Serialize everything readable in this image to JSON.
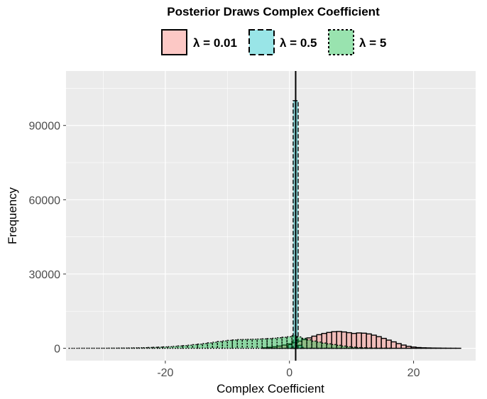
{
  "chart_data": {
    "type": "histogram",
    "title": "Posterior Draws Complex Coefficient",
    "xlabel": "Complex Coefficient",
    "ylabel": "Frequency",
    "xlim": [
      -36,
      30
    ],
    "ylim": [
      -5000,
      112000
    ],
    "x_ticks": [
      -20,
      0,
      20
    ],
    "x_tick_labels": [
      "-20",
      "0",
      "20"
    ],
    "y_ticks": [
      0,
      30000,
      60000,
      90000
    ],
    "y_tick_labels": [
      "0",
      "30000",
      "60000",
      "90000"
    ],
    "vline_x": 1,
    "grid": true,
    "legend_position": "top",
    "series": [
      {
        "name": "λ = 0.01",
        "fill": "#f8766d",
        "fill_alpha": 0.4,
        "border": "solid",
        "bin_width": 0.8,
        "bins": [
          {
            "x": -4,
            "y": 200
          },
          {
            "x": -3.2,
            "y": 400
          },
          {
            "x": -2.4,
            "y": 600
          },
          {
            "x": -1.6,
            "y": 900
          },
          {
            "x": -0.8,
            "y": 1300
          },
          {
            "x": 0,
            "y": 1800
          },
          {
            "x": 0.8,
            "y": 2300
          },
          {
            "x": 1.6,
            "y": 2900
          },
          {
            "x": 2.4,
            "y": 3500
          },
          {
            "x": 3.2,
            "y": 4200
          },
          {
            "x": 4,
            "y": 4900
          },
          {
            "x": 4.8,
            "y": 5500
          },
          {
            "x": 5.6,
            "y": 6000
          },
          {
            "x": 6.4,
            "y": 6400
          },
          {
            "x": 7.2,
            "y": 6700
          },
          {
            "x": 8,
            "y": 6800
          },
          {
            "x": 8.8,
            "y": 6600
          },
          {
            "x": 9.6,
            "y": 6300
          },
          {
            "x": 10.4,
            "y": 6000
          },
          {
            "x": 11.2,
            "y": 6200
          },
          {
            "x": 12,
            "y": 6100
          },
          {
            "x": 12.8,
            "y": 5800
          },
          {
            "x": 13.6,
            "y": 5300
          },
          {
            "x": 14.4,
            "y": 4700
          },
          {
            "x": 15.2,
            "y": 4000
          },
          {
            "x": 16,
            "y": 3300
          },
          {
            "x": 16.8,
            "y": 2600
          },
          {
            "x": 17.6,
            "y": 1900
          },
          {
            "x": 18.4,
            "y": 1300
          },
          {
            "x": 19.2,
            "y": 800
          },
          {
            "x": 20,
            "y": 500
          },
          {
            "x": 20.8,
            "y": 300
          },
          {
            "x": 21.6,
            "y": 200
          },
          {
            "x": 22.4,
            "y": 150
          },
          {
            "x": 23.2,
            "y": 100
          },
          {
            "x": 24,
            "y": 80
          },
          {
            "x": 24.8,
            "y": 50
          },
          {
            "x": 25.6,
            "y": 30
          },
          {
            "x": 26.4,
            "y": 20
          },
          {
            "x": 27.2,
            "y": 10
          }
        ]
      },
      {
        "name": "λ = 0.5",
        "fill": "#00bfc4",
        "fill_alpha": 0.4,
        "border": "dashed",
        "bin_width": 0.8,
        "bins": [
          {
            "x": 0.2,
            "y": 1500
          },
          {
            "x": 1.0,
            "y": 100000
          },
          {
            "x": 1.8,
            "y": 1200
          }
        ]
      },
      {
        "name": "λ = 5",
        "fill": "#00ba38",
        "fill_alpha": 0.4,
        "border": "dotted",
        "bin_width": 0.8,
        "bins": [
          {
            "x": -35.2,
            "y": 10
          },
          {
            "x": -34.4,
            "y": 10
          },
          {
            "x": -33.6,
            "y": 20
          },
          {
            "x": -32.8,
            "y": 20
          },
          {
            "x": -32,
            "y": 30
          },
          {
            "x": -31.2,
            "y": 30
          },
          {
            "x": -30.4,
            "y": 40
          },
          {
            "x": -29.6,
            "y": 50
          },
          {
            "x": -28.8,
            "y": 60
          },
          {
            "x": -28,
            "y": 70
          },
          {
            "x": -27.2,
            "y": 90
          },
          {
            "x": -26.4,
            "y": 110
          },
          {
            "x": -25.6,
            "y": 140
          },
          {
            "x": -24.8,
            "y": 170
          },
          {
            "x": -24,
            "y": 210
          },
          {
            "x": -23.2,
            "y": 260
          },
          {
            "x": -22.4,
            "y": 320
          },
          {
            "x": -21.6,
            "y": 390
          },
          {
            "x": -20.8,
            "y": 470
          },
          {
            "x": -20,
            "y": 560
          },
          {
            "x": -19.2,
            "y": 660
          },
          {
            "x": -18.4,
            "y": 780
          },
          {
            "x": -17.6,
            "y": 920
          },
          {
            "x": -16.8,
            "y": 1080
          },
          {
            "x": -16,
            "y": 1260
          },
          {
            "x": -15.2,
            "y": 1460
          },
          {
            "x": -14.4,
            "y": 1680
          },
          {
            "x": -13.6,
            "y": 1920
          },
          {
            "x": -12.8,
            "y": 2180
          },
          {
            "x": -12,
            "y": 2450
          },
          {
            "x": -11.2,
            "y": 2720
          },
          {
            "x": -10.4,
            "y": 2980
          },
          {
            "x": -9.6,
            "y": 3200
          },
          {
            "x": -8.8,
            "y": 3380
          },
          {
            "x": -8,
            "y": 3500
          },
          {
            "x": -7.2,
            "y": 3560
          },
          {
            "x": -6.4,
            "y": 3600
          },
          {
            "x": -5.6,
            "y": 3650
          },
          {
            "x": -4.8,
            "y": 3720
          },
          {
            "x": -4,
            "y": 3800
          },
          {
            "x": -3.2,
            "y": 3900
          },
          {
            "x": -2.4,
            "y": 4050
          },
          {
            "x": -1.6,
            "y": 4250
          },
          {
            "x": -0.8,
            "y": 4450
          },
          {
            "x": 0,
            "y": 4650
          },
          {
            "x": 0.8,
            "y": 5200
          },
          {
            "x": 1.6,
            "y": 4600
          },
          {
            "x": 2.4,
            "y": 4000
          },
          {
            "x": 3.2,
            "y": 3400
          },
          {
            "x": 4,
            "y": 2900
          },
          {
            "x": 4.8,
            "y": 2500
          },
          {
            "x": 5.6,
            "y": 2100
          },
          {
            "x": 6.4,
            "y": 1800
          },
          {
            "x": 7.2,
            "y": 1500
          },
          {
            "x": 8,
            "y": 1200
          },
          {
            "x": 8.8,
            "y": 900
          },
          {
            "x": 9.6,
            "y": 650
          },
          {
            "x": 10.4,
            "y": 450
          },
          {
            "x": 11.2,
            "y": 300
          },
          {
            "x": 12,
            "y": 200
          },
          {
            "x": 12.8,
            "y": 130
          },
          {
            "x": 13.6,
            "y": 80
          },
          {
            "x": 14.4,
            "y": 50
          },
          {
            "x": 15.2,
            "y": 30
          },
          {
            "x": 16,
            "y": 20
          }
        ]
      }
    ]
  }
}
